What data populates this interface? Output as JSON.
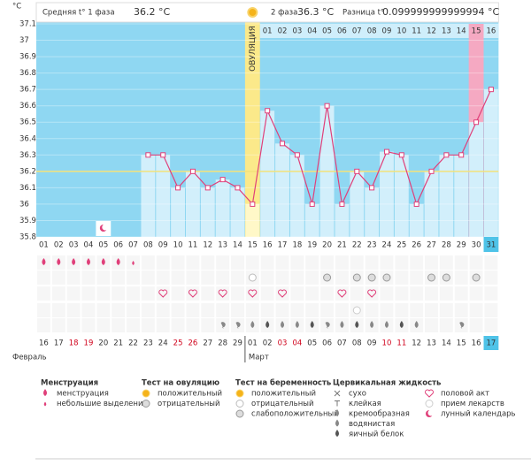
{
  "chart_data": {
    "type": "line",
    "y_label": "°C",
    "header": {
      "phase1": {
        "label": "Средняя t° 1 фаза",
        "value": "36.2 °C"
      },
      "phase2": {
        "label": "2 фаза",
        "value": "36.3 °C"
      },
      "diff": {
        "label": "Разница t°",
        "value": "0.099999999999994 °C"
      }
    },
    "categories": [
      "01",
      "02",
      "03",
      "04",
      "05",
      "06",
      "07",
      "08",
      "09",
      "10",
      "11",
      "12",
      "13",
      "14",
      "15",
      "16",
      "17",
      "18",
      "19",
      "20",
      "21",
      "22",
      "23",
      "24",
      "25",
      "26",
      "27",
      "28",
      "29",
      "30",
      "31"
    ],
    "values": [
      null,
      null,
      null,
      null,
      null,
      null,
      null,
      36.3,
      36.3,
      36.1,
      36.2,
      36.1,
      36.15,
      36.1,
      36.0,
      36.57,
      36.37,
      36.3,
      36.0,
      36.6,
      36.0,
      36.2,
      36.1,
      36.32,
      36.3,
      36.0,
      36.2,
      36.3,
      36.3,
      36.5,
      36.7
    ],
    "color": "#e0407a",
    "ylim": [
      35.8,
      37.1
    ],
    "yticks": [
      37.1,
      37,
      36.9,
      36.8,
      36.7,
      36.6,
      36.5,
      36.4,
      36.3,
      36.2,
      36.1,
      36,
      35.9,
      35.8
    ],
    "coverline": 36.2,
    "ovulation_label": "ОВУЛЯЦИЯ",
    "phase2_days": [
      "01",
      "02",
      "03",
      "04",
      "05",
      "06",
      "07",
      "08",
      "09",
      "10",
      "11",
      "12",
      "13",
      "14",
      "15",
      "16"
    ],
    "dates": [
      "16",
      "17",
      "18",
      "19",
      "20",
      "21",
      "22",
      "23",
      "24",
      "25",
      "26",
      "27",
      "28",
      "29",
      "01",
      "02",
      "03",
      "04",
      "05",
      "06",
      "07",
      "08",
      "09",
      "10",
      "11",
      "12",
      "13",
      "14",
      "15",
      "16",
      "17"
    ],
    "date_colors": [
      "#333",
      "#333",
      "#d0021b",
      "#d0021b",
      "#333",
      "#333",
      "#333",
      "#333",
      "#333",
      "#d0021b",
      "#d0021b",
      "#333",
      "#333",
      "#333",
      "#333",
      "#333",
      "#d0021b",
      "#d0021b",
      "#333",
      "#333",
      "#333",
      "#333",
      "#333",
      "#d0021b",
      "#d0021b",
      "#333",
      "#333",
      "#333",
      "#333",
      "#333",
      "#333"
    ],
    "months": [
      "Февраль",
      "Март"
    ],
    "legend": [
      {
        "title": "Менструация",
        "items": [
          "менструация",
          "небольшие выделения"
        ]
      },
      {
        "title": "Тест на овуляцию",
        "items": [
          "положительный",
          "отрицательный"
        ]
      },
      {
        "title": "Тест на беременность",
        "items": [
          "положительный",
          "отрицательный",
          "слабоположительный"
        ]
      },
      {
        "title": "Цервикальная жидкость",
        "items": [
          "сухо",
          "клейкая",
          "кремообразная",
          "водянистая",
          "яичный белок"
        ]
      },
      {
        "items": [
          "половой акт",
          "прием лекарств",
          "лунный календарь"
        ]
      }
    ]
  }
}
